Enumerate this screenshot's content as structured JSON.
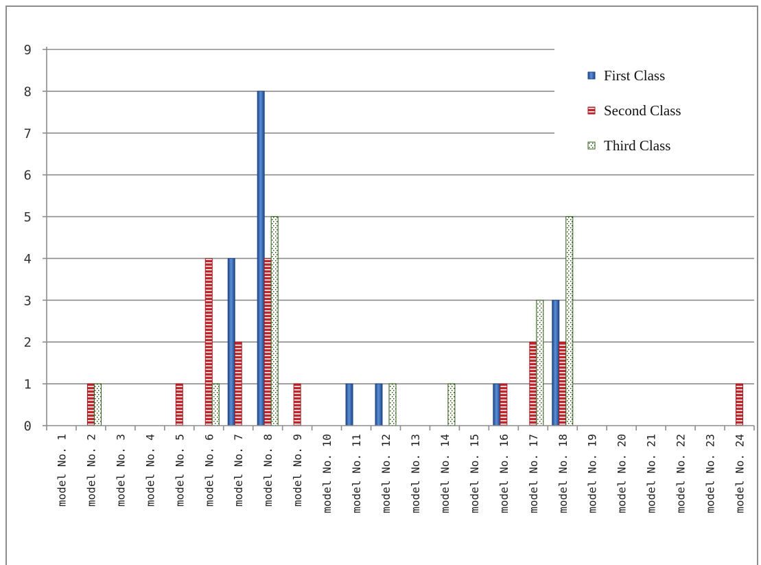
{
  "chart_data": {
    "type": "bar",
    "categories": [
      "model No. 1",
      "model No. 2",
      "model No. 3",
      "model No. 4",
      "model No. 5",
      "model No. 6",
      "model No. 7",
      "model No. 8",
      "model No. 9",
      "model No. 10",
      "model No. 11",
      "model No. 12",
      "model No. 13",
      "model No. 14",
      "model No. 15",
      "model No. 16",
      "model No. 17",
      "model No. 18",
      "model No. 19",
      "model No. 20",
      "model No. 21",
      "model No. 22",
      "model No. 23",
      "model No. 24"
    ],
    "series": [
      {
        "name": "First Class",
        "color": "#2f64b2",
        "values": [
          0,
          0,
          0,
          0,
          0,
          0,
          4,
          8,
          0,
          0,
          1,
          1,
          0,
          0,
          0,
          1,
          0,
          3,
          0,
          0,
          0,
          0,
          0,
          0
        ]
      },
      {
        "name": "Second Class",
        "color": "#c0272d",
        "values": [
          0,
          1,
          0,
          0,
          1,
          4,
          2,
          4,
          1,
          0,
          0,
          0,
          0,
          0,
          0,
          1,
          2,
          2,
          0,
          0,
          0,
          0,
          0,
          1
        ]
      },
      {
        "name": "Third Class",
        "color": "#2e5a14",
        "values": [
          0,
          1,
          0,
          0,
          0,
          1,
          0,
          5,
          0,
          0,
          0,
          1,
          0,
          1,
          0,
          0,
          3,
          5,
          0,
          0,
          0,
          0,
          0,
          0
        ]
      }
    ],
    "yticks": [
      "0",
      "1",
      "2",
      "3",
      "4",
      "5",
      "6",
      "7",
      "8",
      "9"
    ],
    "ylim": [
      0,
      9
    ],
    "grid": true,
    "legend_position": "top-right"
  }
}
